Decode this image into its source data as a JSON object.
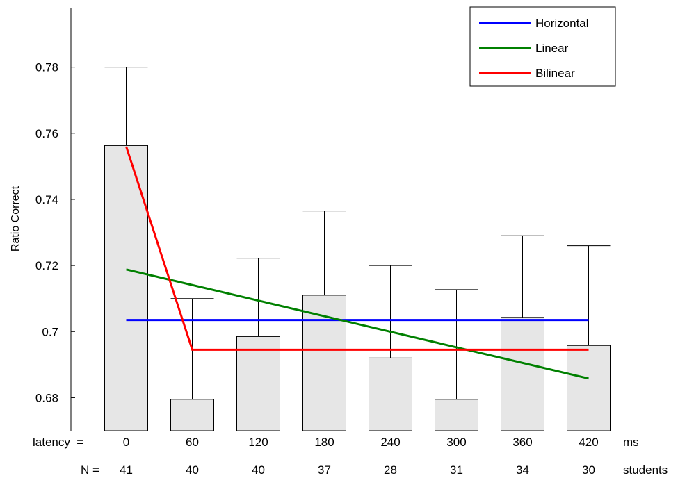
{
  "chart_data": {
    "type": "bar",
    "ylabel": "Ratio Correct",
    "ylim": [
      0.67,
      0.798
    ],
    "yticks": [
      0.68,
      0.7,
      0.72,
      0.74,
      0.76,
      0.78
    ],
    "ytick_labels": [
      "0.68",
      "0.7",
      "0.72",
      "0.74",
      "0.76",
      "0.78"
    ],
    "x_row_label": "latency  =",
    "x_unit": "ms",
    "categories": [
      "0",
      "60",
      "120",
      "180",
      "240",
      "300",
      "360",
      "420"
    ],
    "n_row_label": "N =",
    "n_values": [
      "41",
      "40",
      "40",
      "37",
      "28",
      "31",
      "34",
      "30"
    ],
    "n_unit": "students",
    "values": [
      0.7563,
      0.6795,
      0.6985,
      0.711,
      0.692,
      0.6795,
      0.7043,
      0.6958
    ],
    "error_upper": [
      0.78,
      0.71,
      0.7222,
      0.7365,
      0.72,
      0.7127,
      0.729,
      0.726
    ],
    "bar_color": "#e6e6e6",
    "series": [
      {
        "name": "Horizontal",
        "color": "#0000ff",
        "x": [
          0,
          420
        ],
        "y": [
          0.7035,
          0.7035
        ]
      },
      {
        "name": "Linear",
        "color": "#008000",
        "x": [
          0,
          420
        ],
        "y": [
          0.7188,
          0.6858
        ]
      },
      {
        "name": "Bilinear",
        "color": "#ff0000",
        "x": [
          0,
          60,
          420
        ],
        "y": [
          0.756,
          0.6945,
          0.6945
        ]
      }
    ],
    "legend_position": "top-right",
    "grid": false
  }
}
